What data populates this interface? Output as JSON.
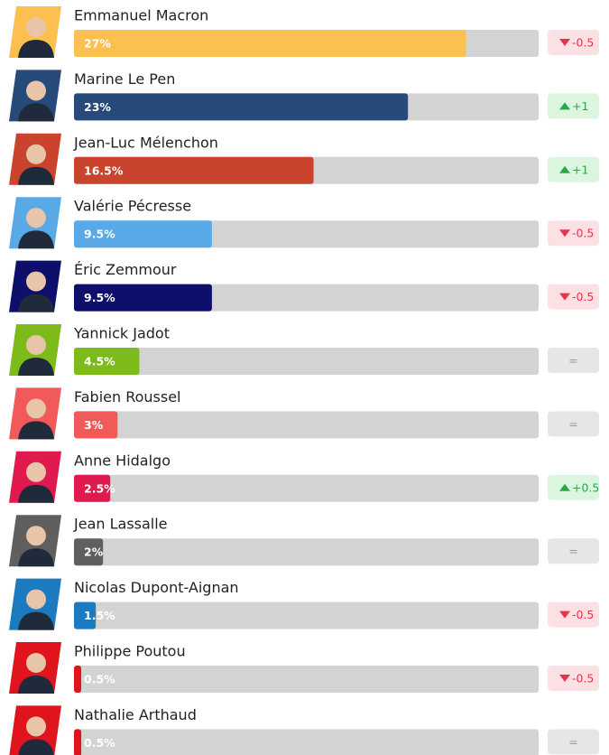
{
  "chart_data": {
    "type": "bar",
    "orientation": "horizontal",
    "categories": [
      "Emmanuel Macron",
      "Marine Le Pen",
      "Jean-Luc Mélenchon",
      "Valérie Pécresse",
      "Éric Zemmour",
      "Yannick Jadot",
      "Fabien Roussel",
      "Anne Hidalgo",
      "Jean Lassalle",
      "Nicolas Dupont-Aignan",
      "Philippe Poutou",
      "Nathalie Arthaud"
    ],
    "values": [
      27,
      23,
      16.5,
      9.5,
      9.5,
      4.5,
      3,
      2.5,
      2,
      1.5,
      0.5,
      0.5
    ],
    "value_labels": [
      "27%",
      "23%",
      "16.5%",
      "9.5%",
      "9.5%",
      "4.5%",
      "3%",
      "2.5%",
      "2%",
      "1.5%",
      "0.5%",
      "0.5%"
    ],
    "colors": [
      "#fbc04f",
      "#264a7a",
      "#c9432d",
      "#58a9e6",
      "#0e0e6b",
      "#7cbb19",
      "#f25a5a",
      "#e0194f",
      "#5f5f5f",
      "#1c7ac0",
      "#e0141c",
      "#e0141c"
    ],
    "changes": [
      -0.5,
      1,
      1,
      -0.5,
      -0.5,
      0,
      0,
      0.5,
      0,
      -0.5,
      -0.5,
      0
    ],
    "change_labels": [
      "-0.5",
      "+1",
      "+1",
      "-0.5",
      "-0.5",
      "=",
      "=",
      "+0.5",
      "=",
      "-0.5",
      "-0.5",
      "="
    ],
    "xlim": [
      0,
      32
    ]
  }
}
